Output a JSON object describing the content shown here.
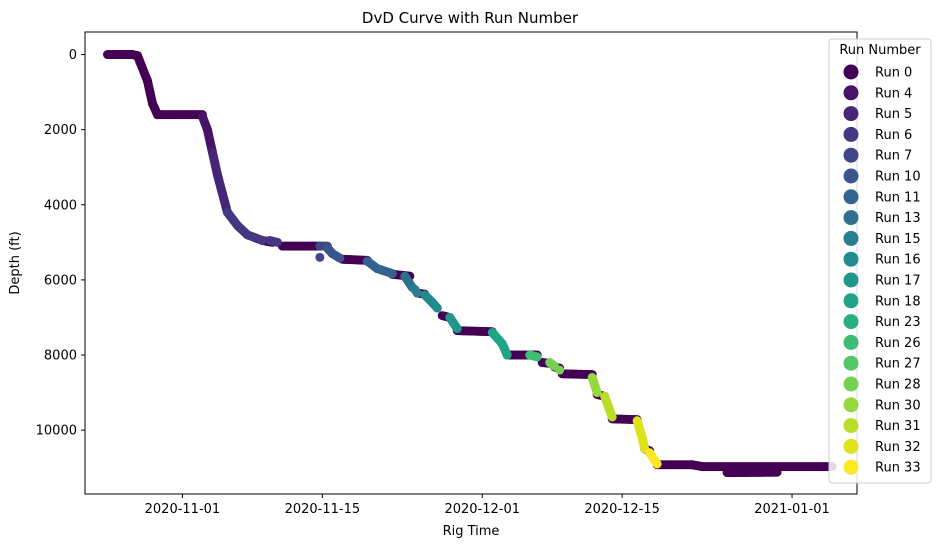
{
  "chart_data": {
    "type": "scatter",
    "title": "DvD Curve with Run Number",
    "xlabel": "Rig Time",
    "ylabel": "Depth (ft)",
    "x_axis": {
      "kind": "date",
      "xlim": [
        "2020-10-22T06:00",
        "2021-01-07T12:00"
      ],
      "ticks": [
        "2020-11-01",
        "2020-11-15",
        "2020-12-01",
        "2020-12-15",
        "2021-01-01"
      ],
      "tick_labels": [
        "2020-11-01",
        "2020-11-15",
        "2020-12-01",
        "2020-12-15",
        "2021-01-01"
      ]
    },
    "y_axis": {
      "inverted": true,
      "ylim": [
        -600,
        11700
      ],
      "ticks": [
        0,
        2000,
        4000,
        6000,
        8000,
        10000
      ],
      "tick_labels": [
        "0",
        "2000",
        "4000",
        "6000",
        "8000",
        "10000"
      ]
    },
    "grid": false,
    "legend": {
      "title": "Run Number",
      "placement": "upper right, outside plot edge",
      "entries": [
        {
          "run": 0,
          "label": "Run 0",
          "color": "#440154"
        },
        {
          "run": 4,
          "label": "Run 4",
          "color": "#481467"
        },
        {
          "run": 5,
          "label": "Run 5",
          "color": "#482576"
        },
        {
          "run": 6,
          "label": "Run 6",
          "color": "#453781"
        },
        {
          "run": 7,
          "label": "Run 7",
          "color": "#3f4788"
        },
        {
          "run": 10,
          "label": "Run 10",
          "color": "#39558c"
        },
        {
          "run": 11,
          "label": "Run 11",
          "color": "#32648e"
        },
        {
          "run": 13,
          "label": "Run 13",
          "color": "#2d718e"
        },
        {
          "run": 15,
          "label": "Run 15",
          "color": "#287d8e"
        },
        {
          "run": 16,
          "label": "Run 16",
          "color": "#238a8d"
        },
        {
          "run": 17,
          "label": "Run 17",
          "color": "#1f968b"
        },
        {
          "run": 18,
          "label": "Run 18",
          "color": "#20a386"
        },
        {
          "run": 23,
          "label": "Run 23",
          "color": "#29af7f"
        },
        {
          "run": 26,
          "label": "Run 26",
          "color": "#3dbc74"
        },
        {
          "run": 27,
          "label": "Run 27",
          "color": "#56c667"
        },
        {
          "run": 28,
          "label": "Run 28",
          "color": "#75d054"
        },
        {
          "run": 30,
          "label": "Run 30",
          "color": "#95d840"
        },
        {
          "run": 31,
          "label": "Run 31",
          "color": "#bade28"
        },
        {
          "run": 32,
          "label": "Run 32",
          "color": "#dde318"
        },
        {
          "run": 33,
          "label": "Run 33",
          "color": "#fde725"
        }
      ]
    },
    "series": [
      {
        "run": 0,
        "segments": [
          {
            "points": [
              [
                "2020-10-24T12:00",
                0
              ],
              [
                "2020-10-27T00:00",
                0
              ],
              [
                "2020-10-27T12:00",
                30
              ]
            ]
          },
          {
            "points": [
              [
                "2020-10-27T12:00",
                30
              ],
              [
                "2020-10-28T12:00",
                700
              ],
              [
                "2020-10-29T00:00",
                1300
              ],
              [
                "2020-10-29T12:00",
                1600
              ],
              [
                "2020-11-03T00:00",
                1600
              ]
            ]
          },
          {
            "points": [
              [
                "2020-11-09T00:00",
                4950
              ],
              [
                "2020-11-10T00:00",
                5000
              ]
            ]
          },
          {
            "points": [
              [
                "2020-11-11T00:00",
                5100
              ],
              [
                "2020-11-14T18:00",
                5100
              ]
            ]
          },
          {
            "points": [
              [
                "2020-11-17T00:00",
                5450
              ],
              [
                "2020-11-19T12:00",
                5480
              ]
            ]
          },
          {
            "points": [
              [
                "2020-11-22T00:00",
                5850
              ],
              [
                "2020-11-23T18:00",
                5900
              ]
            ]
          },
          {
            "points": [
              [
                "2020-11-24T12:00",
                6350
              ],
              [
                "2020-11-25T06:00",
                6380
              ]
            ]
          },
          {
            "points": [
              [
                "2020-11-27T00:00",
                6950
              ],
              [
                "2020-11-27T18:00",
                7000
              ]
            ]
          },
          {
            "points": [
              [
                "2020-11-28T12:00",
                7350
              ],
              [
                "2020-12-02T00:00",
                7380
              ]
            ]
          },
          {
            "points": [
              [
                "2020-12-03T12:00",
                8000
              ],
              [
                "2020-12-06T12:00",
                8000
              ]
            ]
          },
          {
            "points": [
              [
                "2020-12-07T00:00",
                8200
              ],
              [
                "2020-12-07T18:00",
                8220
              ]
            ]
          },
          {
            "points": [
              [
                "2020-12-08T06:00",
                8320
              ],
              [
                "2020-12-08T18:00",
                8350
              ]
            ]
          },
          {
            "points": [
              [
                "2020-12-09T00:00",
                8500
              ],
              [
                "2020-12-12T00:00",
                8520
              ]
            ]
          },
          {
            "points": [
              [
                "2020-12-12T12:00",
                9050
              ],
              [
                "2020-12-13T06:00",
                9100
              ]
            ]
          },
          {
            "points": [
              [
                "2020-12-14T00:00",
                9700
              ],
              [
                "2020-12-16T12:00",
                9720
              ]
            ]
          },
          {
            "points": [
              [
                "2020-12-17T06:00",
                10500
              ],
              [
                "2020-12-17T18:00",
                10550
              ]
            ]
          },
          {
            "points": [
              [
                "2020-12-18T12:00",
                10920
              ],
              [
                "2020-12-22T00:00",
                10920
              ],
              [
                "2020-12-23T00:00",
                10970
              ],
              [
                "2021-01-05T00:00",
                10970
              ]
            ]
          },
          {
            "points": [
              [
                "2020-12-25T12:00",
                11130
              ],
              [
                "2020-12-30T12:00",
                11120
              ]
            ]
          }
        ]
      },
      {
        "run": 4,
        "segments": [
          {
            "points": [
              [
                "2020-11-03T00:00",
                1650
              ],
              [
                "2020-11-03T12:00",
                2000
              ],
              [
                "2020-11-04T00:00",
                2600
              ]
            ]
          }
        ]
      },
      {
        "run": 5,
        "segments": [
          {
            "points": [
              [
                "2020-11-04T00:00",
                2600
              ],
              [
                "2020-11-04T12:00",
                3200
              ],
              [
                "2020-11-05T00:00",
                3700
              ],
              [
                "2020-11-05T12:00",
                4200
              ]
            ]
          }
        ]
      },
      {
        "run": 6,
        "segments": [
          {
            "points": [
              [
                "2020-11-05T12:00",
                4200
              ],
              [
                "2020-11-06T12:00",
                4550
              ],
              [
                "2020-11-07T12:00",
                4800
              ],
              [
                "2020-11-09T00:00",
                4950
              ]
            ]
          },
          {
            "points": [
              [
                "2020-11-09T18:00",
                4950
              ],
              [
                "2020-11-10T12:00",
                5000
              ]
            ]
          }
        ]
      },
      {
        "run": 7,
        "segments": [
          {
            "points": [
              [
                "2020-11-14T18:00",
                5100
              ],
              [
                "2020-11-15T12:00",
                5100
              ]
            ]
          },
          {
            "points": [
              [
                "2020-11-14T18:00",
                5400
              ]
            ]
          }
        ]
      },
      {
        "run": 10,
        "segments": [
          {
            "points": [
              [
                "2020-11-15T12:00",
                5150
              ],
              [
                "2020-11-16T00:00",
                5300
              ],
              [
                "2020-11-16T18:00",
                5420
              ]
            ]
          }
        ]
      },
      {
        "run": 11,
        "segments": [
          {
            "points": [
              [
                "2020-11-19T12:00",
                5500
              ],
              [
                "2020-11-20T12:00",
                5700
              ],
              [
                "2020-11-22T00:00",
                5830
              ]
            ]
          }
        ]
      },
      {
        "run": 13,
        "segments": [
          {
            "points": [
              [
                "2020-11-23T06:00",
                5900
              ],
              [
                "2020-11-24T00:00",
                6200
              ]
            ]
          }
        ]
      },
      {
        "run": 15,
        "segments": [
          {
            "points": [
              [
                "2020-11-24T06:00",
                6250
              ],
              [
                "2020-11-24T12:00",
                6350
              ]
            ]
          }
        ]
      },
      {
        "run": 16,
        "segments": [
          {
            "points": [
              [
                "2020-11-25T06:00",
                6400
              ],
              [
                "2020-11-26T00:00",
                6600
              ],
              [
                "2020-11-26T12:00",
                6750
              ]
            ]
          }
        ]
      },
      {
        "run": 17,
        "segments": [
          {
            "points": [
              [
                "2020-11-27T18:00",
                7000
              ],
              [
                "2020-11-28T12:00",
                7300
              ]
            ]
          }
        ]
      },
      {
        "run": 18,
        "segments": [
          {
            "points": [
              [
                "2020-12-02T00:00",
                7400
              ],
              [
                "2020-12-03T00:00",
                7700
              ],
              [
                "2020-12-03T12:00",
                8000
              ]
            ]
          }
        ]
      },
      {
        "run": 26,
        "segments": [
          {
            "points": [
              [
                "2020-12-05T18:00",
                8000
              ],
              [
                "2020-12-06T12:00",
                8050
              ]
            ]
          }
        ]
      },
      {
        "run": 28,
        "segments": [
          {
            "points": [
              [
                "2020-12-07T18:00",
                8200
              ],
              [
                "2020-12-08T06:00",
                8300
              ]
            ]
          },
          {
            "points": [
              [
                "2020-12-08T18:00",
                8400
              ]
            ]
          }
        ]
      },
      {
        "run": 30,
        "segments": [
          {
            "points": [
              [
                "2020-12-12T00:00",
                8600
              ],
              [
                "2020-12-12T12:00",
                9000
              ]
            ]
          }
        ]
      },
      {
        "run": 31,
        "segments": [
          {
            "points": [
              [
                "2020-12-13T06:00",
                9100
              ],
              [
                "2020-12-14T00:00",
                9650
              ]
            ]
          }
        ]
      },
      {
        "run": 32,
        "segments": [
          {
            "points": [
              [
                "2020-12-16T12:00",
                9750
              ],
              [
                "2020-12-17T00:00",
                10200
              ],
              [
                "2020-12-17T06:00",
                10500
              ]
            ]
          }
        ]
      },
      {
        "run": 33,
        "segments": [
          {
            "points": [
              [
                "2020-12-17T18:00",
                10600
              ],
              [
                "2020-12-18T12:00",
                10900
              ]
            ]
          }
        ]
      }
    ]
  }
}
